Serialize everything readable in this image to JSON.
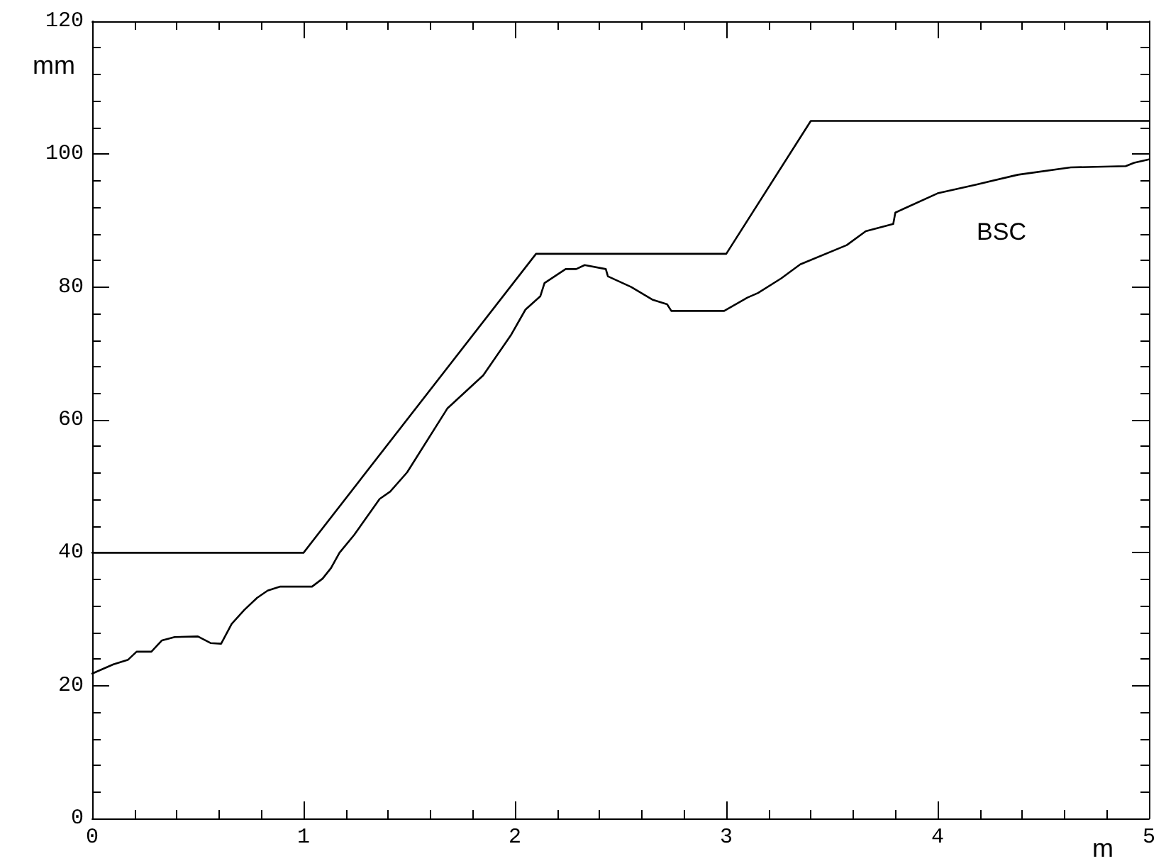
{
  "chart_data": {
    "type": "line",
    "xlabel": "m",
    "ylabel": "mm",
    "xlim": [
      0,
      5
    ],
    "xticks": [
      0,
      1,
      2,
      3,
      4,
      5
    ],
    "ylim": [
      0,
      120
    ],
    "yticks": [
      0,
      20,
      40,
      60,
      80,
      100,
      120
    ],
    "grid": false,
    "legend": false,
    "marker": "none",
    "line_style": "solid",
    "series": [
      {
        "color": "#000000",
        "x": [
          0,
          1,
          2.1,
          3,
          3.4,
          5
        ],
        "values": [
          40,
          40,
          85,
          85,
          105,
          105
        ]
      },
      {
        "name": "BSC",
        "color": "#000000",
        "x": [
          0,
          0.1,
          0.17,
          0.21,
          0.28,
          0.33,
          0.39,
          0.5,
          0.56,
          0.61,
          0.66,
          0.72,
          0.78,
          0.83,
          0.89,
          1.04,
          1.09,
          1.13,
          1.17,
          1.24,
          1.36,
          1.41,
          1.49,
          1.68,
          1.85,
          1.98,
          2.05,
          2.12,
          2.14,
          2.24,
          2.29,
          2.33,
          2.43,
          2.44,
          2.55,
          2.65,
          2.72,
          2.74,
          2.99,
          3.1,
          3.15,
          3.26,
          3.35,
          3.57,
          3.66,
          3.79,
          3.8,
          4,
          4.18,
          4.38,
          4.63,
          4.89,
          4.93,
          5
        ],
        "values": [
          21.8,
          23.2,
          23.9,
          25.1,
          25.1,
          26.8,
          27.3,
          27.4,
          26.4,
          26.3,
          29.3,
          31.4,
          33.2,
          34.3,
          34.9,
          34.9,
          36.1,
          37.7,
          40,
          42.7,
          48.1,
          49.2,
          52.1,
          61.7,
          66.7,
          72.7,
          76.6,
          78.6,
          80.6,
          82.7,
          82.7,
          83.3,
          82.7,
          81.6,
          80,
          78.1,
          77.4,
          76.4,
          76.4,
          78.4,
          79.1,
          81.3,
          83.4,
          86.3,
          88.4,
          89.5,
          91.2,
          94.1,
          95.4,
          96.9,
          98,
          98.2,
          98.7,
          99.2
        ]
      }
    ]
  }
}
